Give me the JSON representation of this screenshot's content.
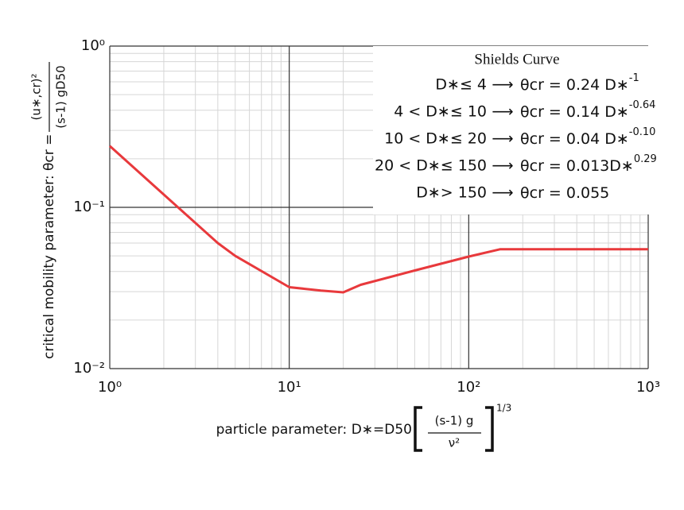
{
  "chart_data": {
    "type": "line",
    "xscale": "log",
    "yscale": "log",
    "xlim": [
      1,
      1000
    ],
    "ylim": [
      0.01,
      1
    ],
    "xticks": [
      {
        "value": 1,
        "label": "10⁰"
      },
      {
        "value": 10,
        "label": "10¹"
      },
      {
        "value": 100,
        "label": "10²"
      },
      {
        "value": 1000,
        "label": "10³"
      }
    ],
    "yticks": [
      {
        "value": 0.01,
        "label": "10⁻²"
      },
      {
        "value": 0.1,
        "label": "10⁻¹"
      },
      {
        "value": 1,
        "label": "10⁰"
      }
    ],
    "xminorticks": [
      2,
      3,
      4,
      5,
      6,
      7,
      8,
      9,
      20,
      30,
      40,
      50,
      60,
      70,
      80,
      90,
      200,
      300,
      400,
      500,
      600,
      700,
      800,
      900
    ],
    "yminorticks": [
      0.02,
      0.03,
      0.04,
      0.05,
      0.06,
      0.07,
      0.08,
      0.09,
      0.2,
      0.3,
      0.4,
      0.5,
      0.6,
      0.7,
      0.8,
      0.9
    ],
    "grid": true,
    "x": [
      1,
      2,
      4,
      5,
      10,
      15,
      20,
      25,
      50,
      100,
      150,
      1000
    ],
    "series": [
      {
        "name": "Shields Curve",
        "color": "#e8393c",
        "values": [
          0.24,
          0.12,
          0.06,
          0.05,
          0.032,
          0.0305,
          0.0297,
          0.0331,
          0.0406,
          0.0495,
          0.055,
          0.055
        ]
      }
    ],
    "legend": {
      "title": "Shields Curve",
      "position": "upper right",
      "lines": [
        {
          "condition": "D∗≤ 4",
          "formula": "θcr = 0.24 D∗",
          "exponent": "-1"
        },
        {
          "condition": "4 < D∗≤ 10",
          "formula": "θcr = 0.14 D∗",
          "exponent": "-0.64"
        },
        {
          "condition": "10 < D∗≤ 20",
          "formula": "θcr = 0.04 D∗",
          "exponent": "-0.10"
        },
        {
          "condition": "20 < D∗≤ 150",
          "formula": "θcr = 0.013D∗",
          "exponent": "0.29"
        },
        {
          "condition": "D∗> 150",
          "formula": "θcr = 0.055",
          "exponent": null
        }
      ]
    },
    "arrow": "⟶",
    "ylabel": "critical mobility parameter: θcr =",
    "ylabel_numerator": "(u∗,cr)²",
    "ylabel_denominator": "(s-1) gD50",
    "xlabel": "particle parameter: D∗=D50",
    "xlabel_numerator": "(s-1) g",
    "xlabel_denominator": "ν²",
    "xlabel_exponent": "1/3"
  }
}
